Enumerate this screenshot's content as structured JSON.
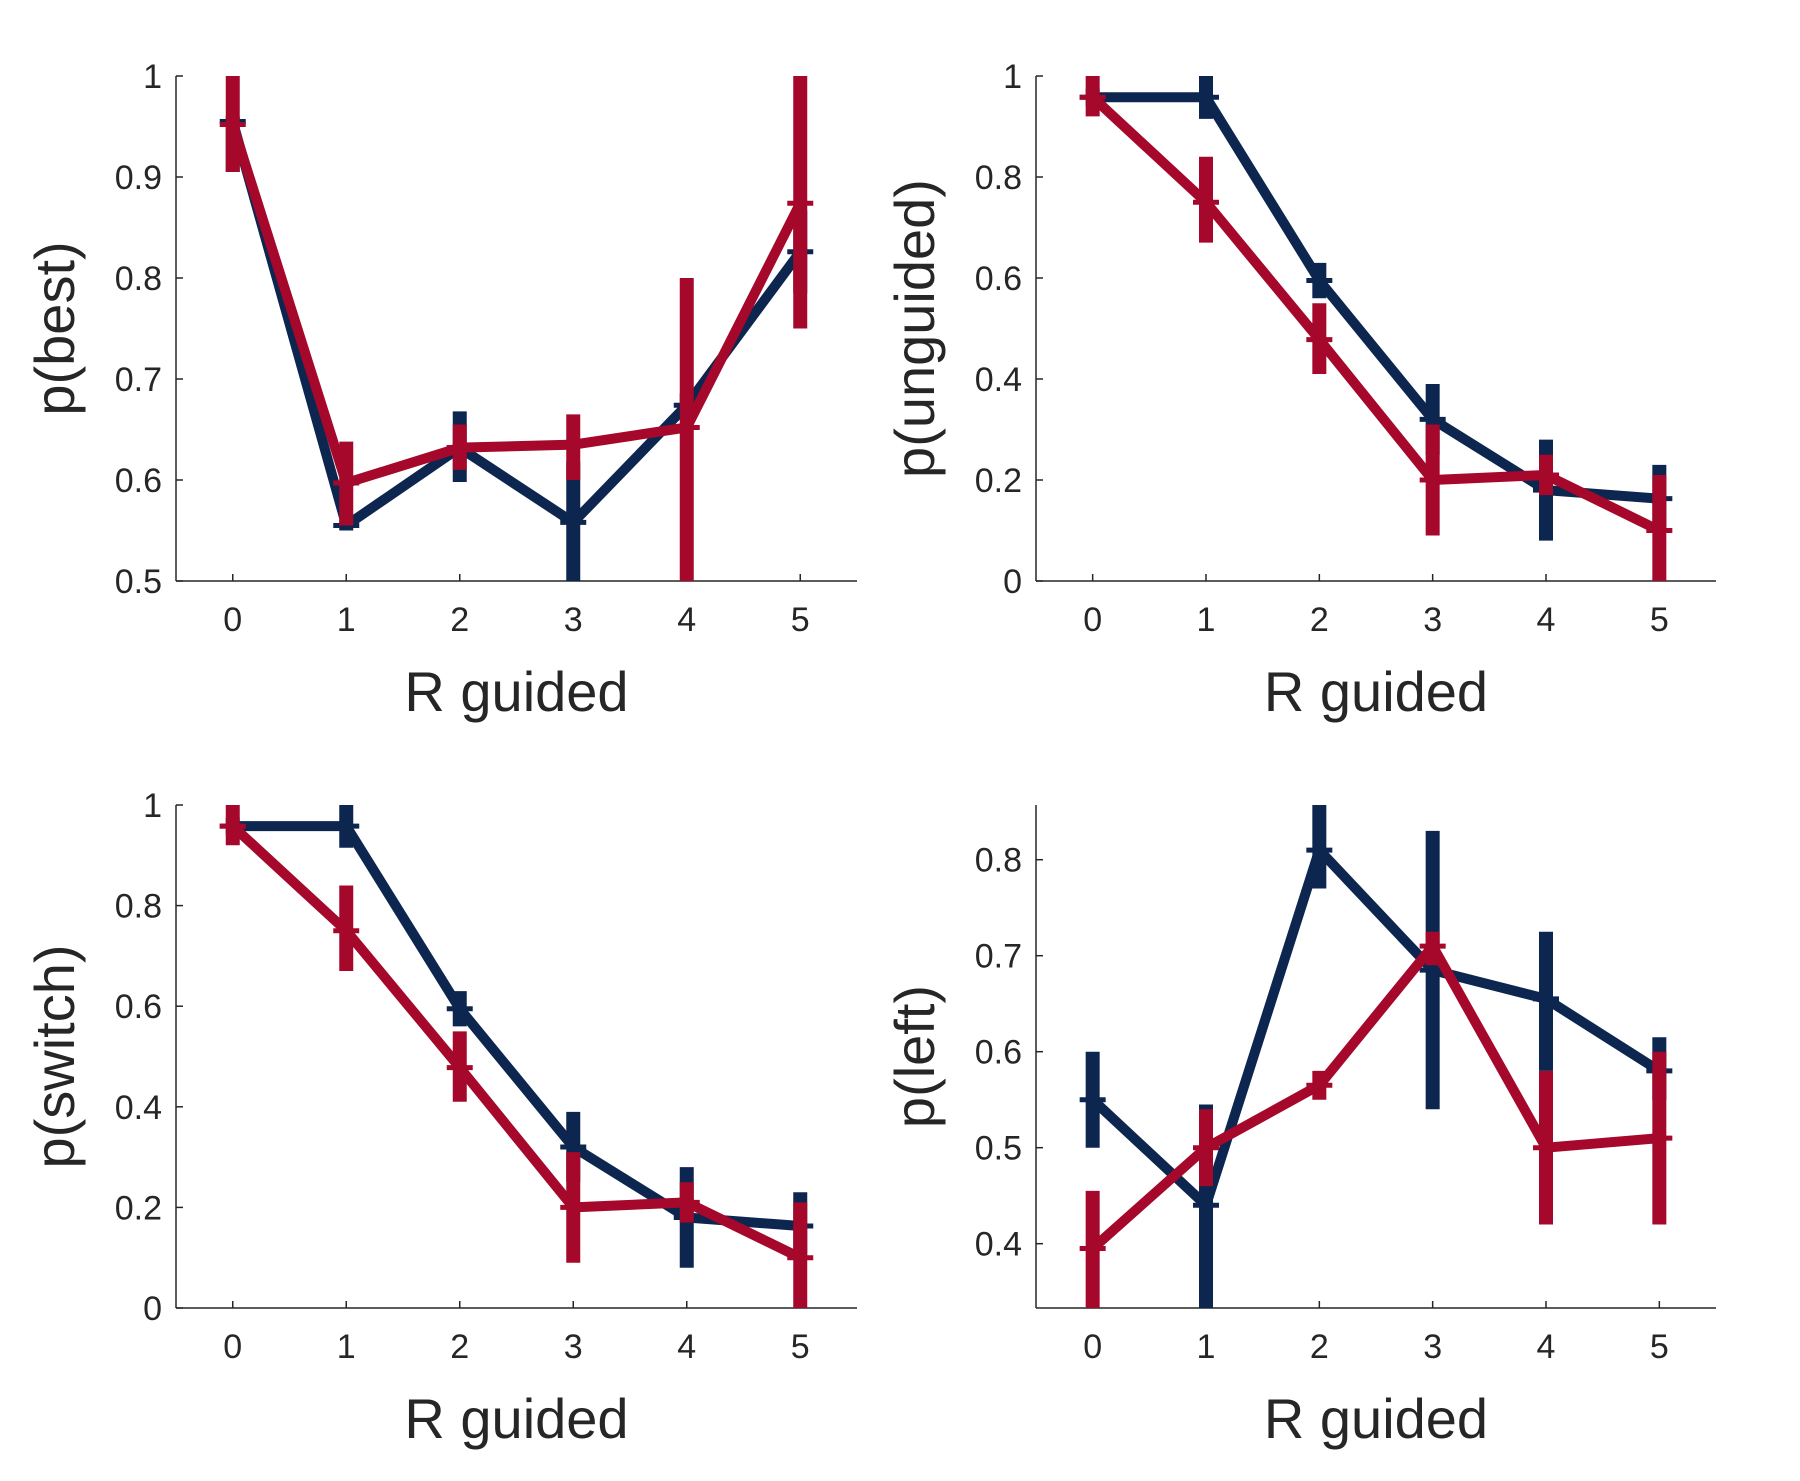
{
  "colors": {
    "series_blue": "#0d2650",
    "series_red": "#a5082a",
    "axis": "#262626"
  },
  "chart_data": [
    {
      "type": "line",
      "xlabel": "R guided",
      "ylabel": "p(best)",
      "x": [
        0,
        1,
        2,
        3,
        4,
        5
      ],
      "xticks": [
        "0",
        "1",
        "2",
        "3",
        "4",
        "5"
      ],
      "ylim": [
        0.5,
        1
      ],
      "yticks": [
        "0.5",
        "0.6",
        "0.7",
        "0.8",
        "0.9",
        "1"
      ],
      "grid": false,
      "series": [
        {
          "color": "#0d2650",
          "values": [
            0.955,
            0.555,
            0.632,
            0.558,
            0.674,
            0.826
          ],
          "err_low": [
            0.905,
            0.55,
            0.598,
            0.5,
            0.662,
            0.785
          ],
          "err_high": [
            0.96,
            0.56,
            0.668,
            0.618,
            0.686,
            0.867
          ]
        },
        {
          "color": "#a5082a",
          "values": [
            0.952,
            0.597,
            0.632,
            0.635,
            0.652,
            0.874
          ],
          "err_low": [
            0.905,
            0.555,
            0.61,
            0.6,
            0.5,
            0.75
          ],
          "err_high": [
            1.0,
            0.638,
            0.655,
            0.665,
            0.8,
            1.0
          ]
        }
      ]
    },
    {
      "type": "line",
      "xlabel": "R guided",
      "ylabel": "p(unguided)",
      "x": [
        0,
        1,
        2,
        3,
        4,
        5
      ],
      "xticks": [
        "0",
        "1",
        "2",
        "3",
        "4",
        "5"
      ],
      "ylim": [
        0,
        1
      ],
      "yticks": [
        "0",
        "0.2",
        "0.4",
        "0.6",
        "0.8",
        "1"
      ],
      "grid": false,
      "series": [
        {
          "color": "#0d2650",
          "values": [
            0.958,
            0.958,
            0.595,
            0.32,
            0.18,
            0.163
          ],
          "err_low": [
            0.94,
            0.915,
            0.56,
            0.25,
            0.08,
            0.1
          ],
          "err_high": [
            0.975,
            1.0,
            0.63,
            0.39,
            0.28,
            0.23
          ]
        },
        {
          "color": "#a5082a",
          "values": [
            0.958,
            0.75,
            0.478,
            0.2,
            0.21,
            0.1
          ],
          "err_low": [
            0.92,
            0.67,
            0.41,
            0.09,
            0.17,
            0.0
          ],
          "err_high": [
            1.0,
            0.84,
            0.55,
            0.31,
            0.25,
            0.21
          ]
        }
      ]
    },
    {
      "type": "line",
      "xlabel": "R guided",
      "ylabel": "p(switch)",
      "x": [
        0,
        1,
        2,
        3,
        4,
        5
      ],
      "xticks": [
        "0",
        "1",
        "2",
        "3",
        "4",
        "5"
      ],
      "ylim": [
        0,
        1
      ],
      "yticks": [
        "0",
        "0.2",
        "0.4",
        "0.6",
        "0.8",
        "1"
      ],
      "grid": false,
      "series": [
        {
          "color": "#0d2650",
          "values": [
            0.958,
            0.958,
            0.595,
            0.32,
            0.18,
            0.163
          ],
          "err_low": [
            0.94,
            0.915,
            0.56,
            0.25,
            0.08,
            0.1
          ],
          "err_high": [
            0.975,
            1.0,
            0.63,
            0.39,
            0.28,
            0.23
          ]
        },
        {
          "color": "#a5082a",
          "values": [
            0.958,
            0.75,
            0.478,
            0.2,
            0.21,
            0.1
          ],
          "err_low": [
            0.92,
            0.67,
            0.41,
            0.09,
            0.17,
            0.0
          ],
          "err_high": [
            1.0,
            0.84,
            0.55,
            0.31,
            0.25,
            0.21
          ]
        }
      ]
    },
    {
      "type": "line",
      "xlabel": "R guided",
      "ylabel": "p(left)",
      "x": [
        0,
        1,
        2,
        3,
        4,
        5
      ],
      "xticks": [
        "0",
        "1",
        "2",
        "3",
        "4",
        "5"
      ],
      "ylim": [
        0.333,
        0.857
      ],
      "yticks": [
        "0.4",
        "0.5",
        "0.6",
        "0.7",
        "0.8"
      ],
      "yticks_at": [
        0.4,
        0.5,
        0.6,
        0.7,
        0.8
      ],
      "grid": false,
      "series": [
        {
          "color": "#0d2650",
          "values": [
            0.55,
            0.44,
            0.81,
            0.685,
            0.655,
            0.58
          ],
          "err_low": [
            0.5,
            0.333,
            0.77,
            0.54,
            0.58,
            0.55
          ],
          "err_high": [
            0.6,
            0.545,
            0.857,
            0.83,
            0.725,
            0.615
          ]
        },
        {
          "color": "#a5082a",
          "values": [
            0.395,
            0.5,
            0.565,
            0.71,
            0.5,
            0.51
          ],
          "err_low": [
            0.333,
            0.46,
            0.55,
            0.69,
            0.42,
            0.42
          ],
          "err_high": [
            0.455,
            0.54,
            0.58,
            0.725,
            0.58,
            0.6
          ]
        }
      ]
    }
  ]
}
